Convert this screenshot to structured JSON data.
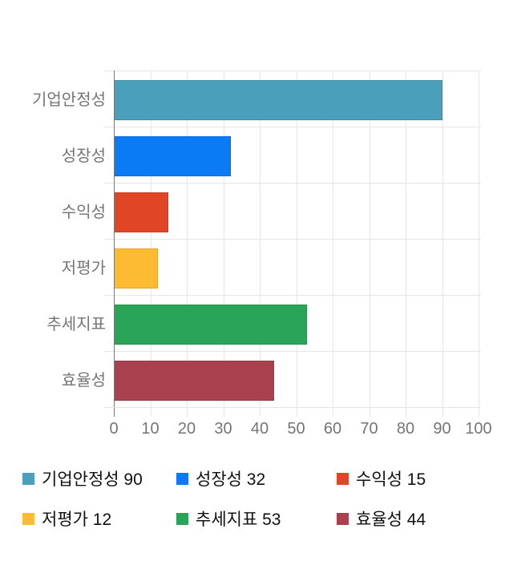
{
  "chart_data": {
    "type": "bar",
    "orientation": "horizontal",
    "title": "",
    "categories": [
      "기업안정성",
      "성장성",
      "수익성",
      "저평가",
      "추세지표",
      "효율성"
    ],
    "values": [
      90,
      32,
      15,
      12,
      53,
      44
    ],
    "colors": [
      "#4AA0BA",
      "#0B7BF5",
      "#E04625",
      "#FDBA33",
      "#2AA457",
      "#AA414F"
    ],
    "bar_border_colors": [
      "#3E8BA3",
      "#0A6CD9",
      "#C63D20",
      "#E3A52B",
      "#24904C",
      "#953945"
    ],
    "xlim": [
      0,
      100
    ],
    "x_ticks": [
      0,
      10,
      20,
      30,
      40,
      50,
      60,
      70,
      80,
      90,
      100
    ],
    "grid": "on",
    "axis_color": "#787878",
    "gridline_color": "#E6E6E6",
    "tick_label_color": "#757575",
    "category_label_color": "#757575",
    "legend_position": "bottom",
    "legend_text_color": "#111111",
    "legend_items": [
      {
        "label": "기업안정성 90",
        "color": "#4AA0BA"
      },
      {
        "label": "성장성 32",
        "color": "#0B7BF5"
      },
      {
        "label": "수익성 15",
        "color": "#E04625"
      },
      {
        "label": "저평가 12",
        "color": "#FDBA33"
      },
      {
        "label": "추세지표 53",
        "color": "#2AA457"
      },
      {
        "label": "효율성 44",
        "color": "#AA414F"
      }
    ]
  }
}
